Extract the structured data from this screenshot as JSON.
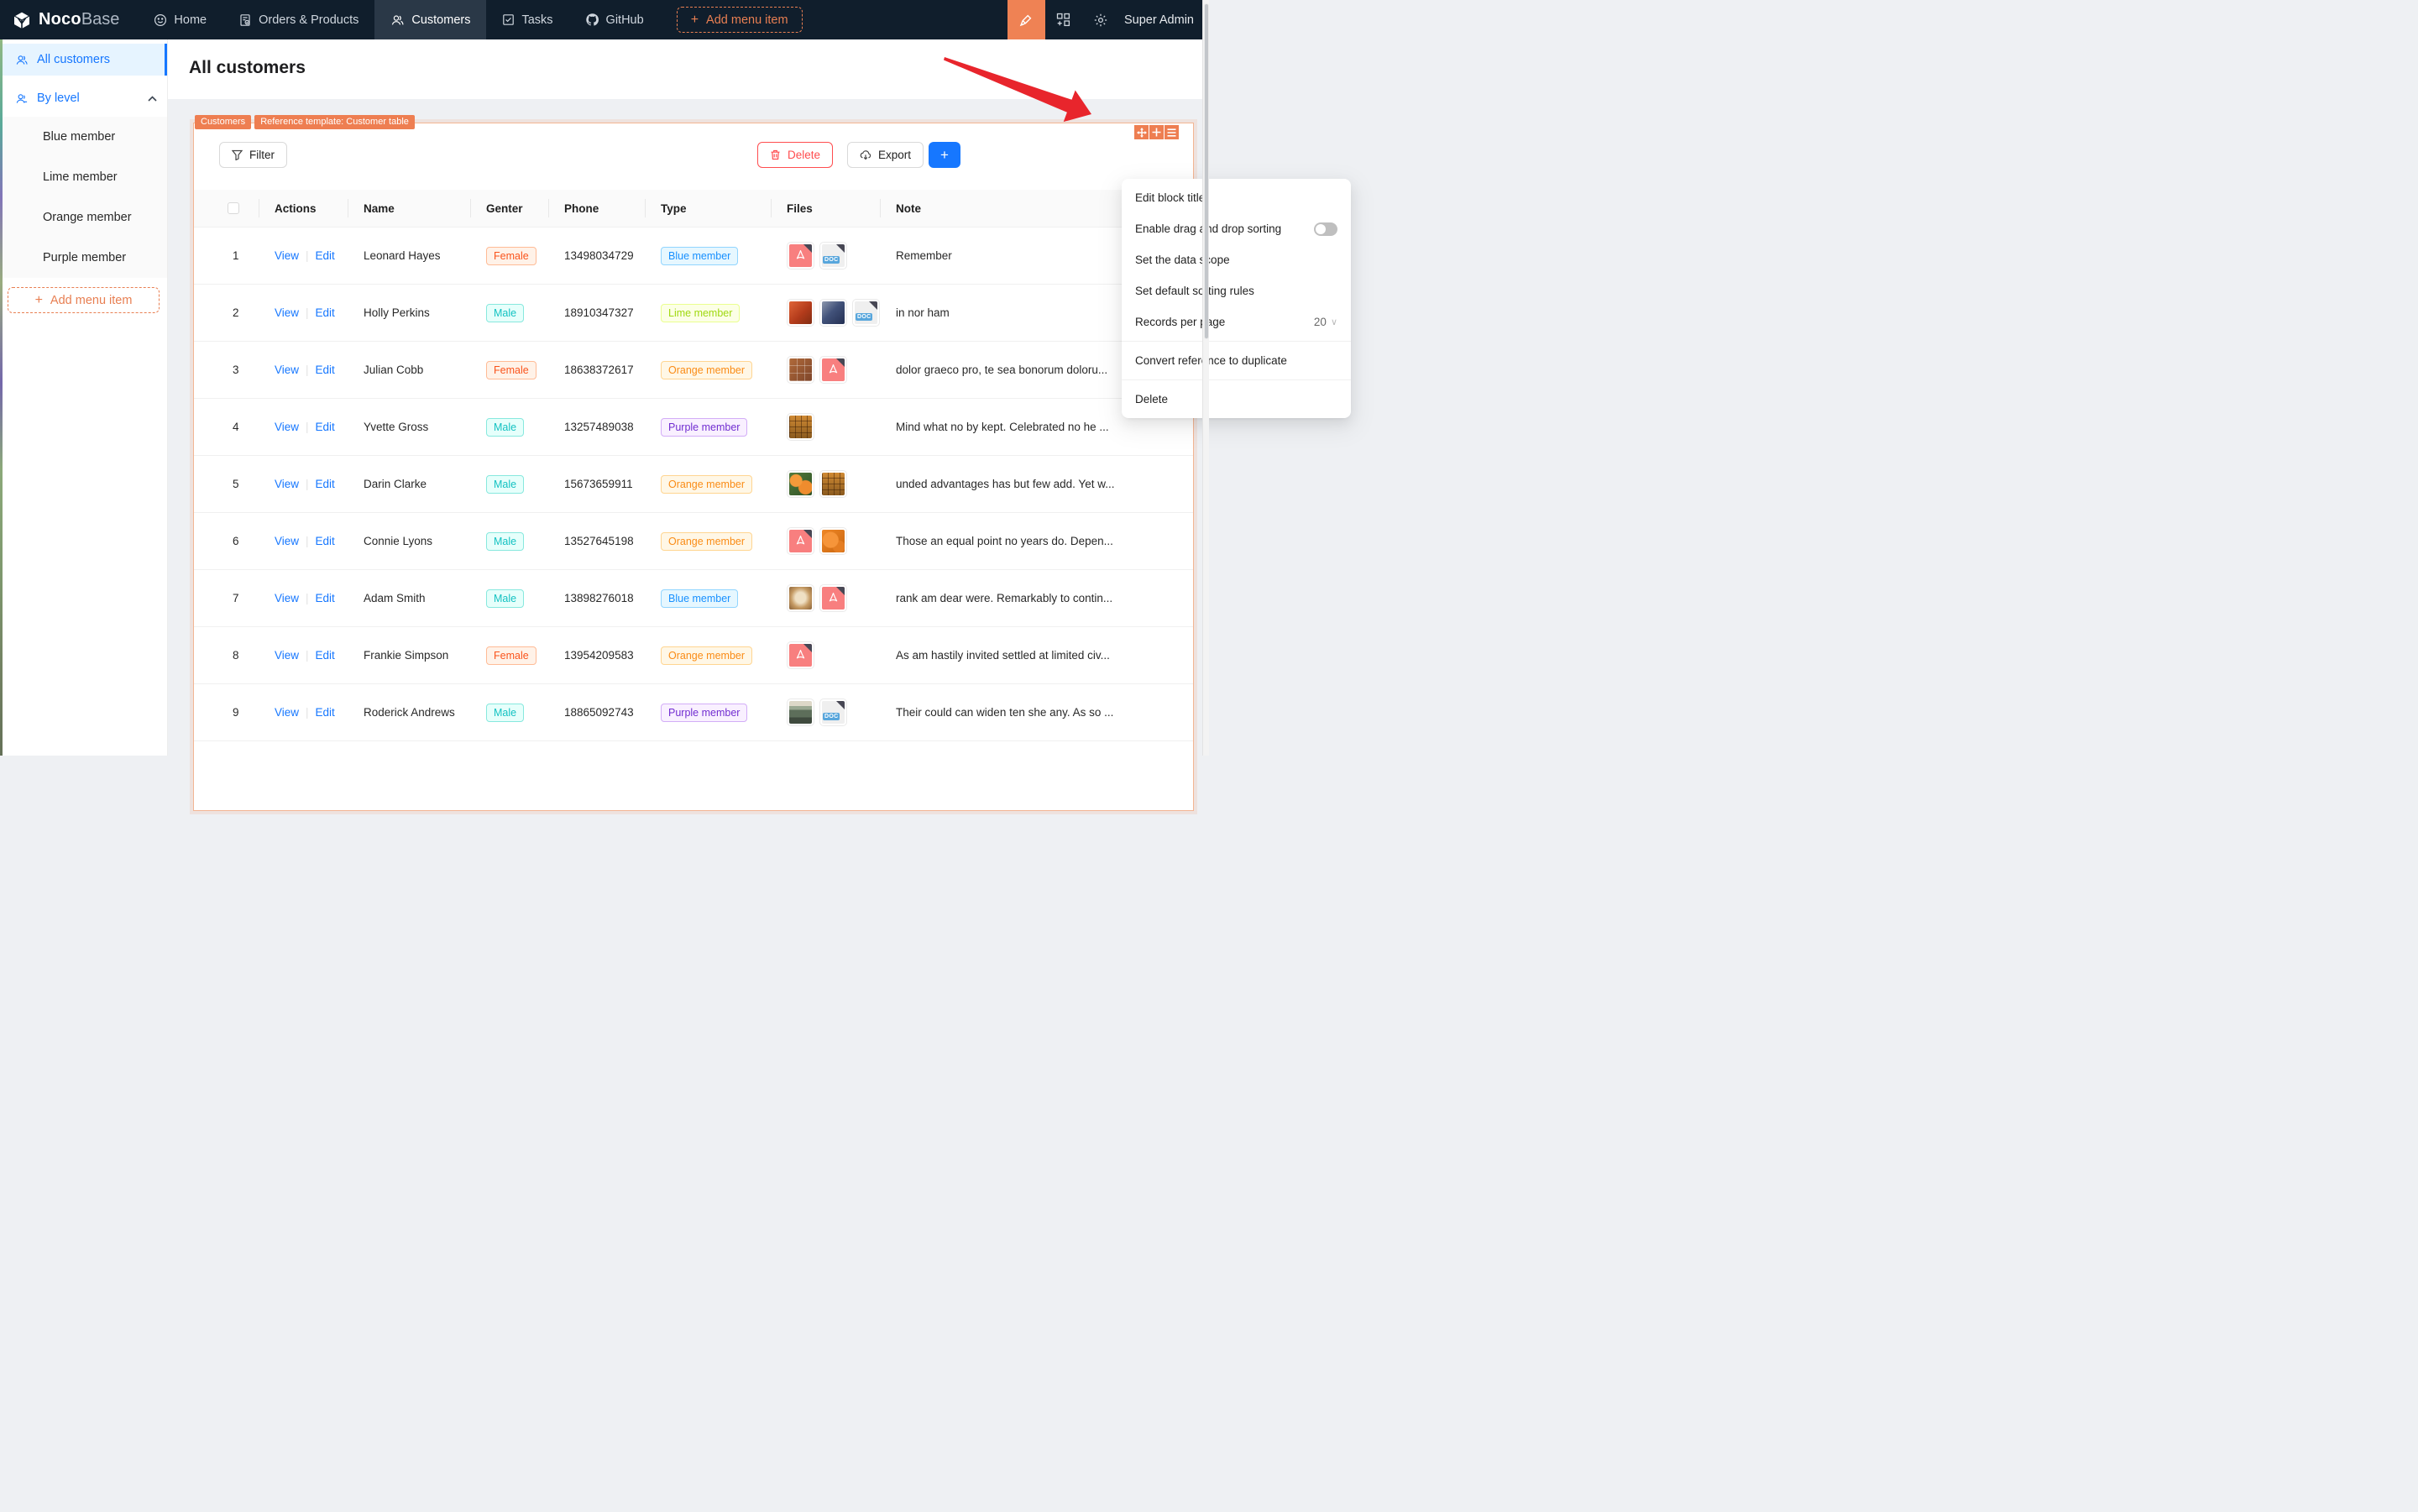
{
  "nav": {
    "logo": {
      "bold": "Noco",
      "light": "Base"
    },
    "items": [
      {
        "label": "Home",
        "icon": "smiley-icon",
        "active": false
      },
      {
        "label": "Orders & Products",
        "icon": "orders-icon",
        "active": false
      },
      {
        "label": "Customers",
        "icon": "customers-icon",
        "active": true
      },
      {
        "label": "Tasks",
        "icon": "tasks-icon",
        "active": false
      },
      {
        "label": "GitHub",
        "icon": "github-icon",
        "active": false
      }
    ],
    "add_menu_item_label": "Add menu item",
    "user": "Super Admin"
  },
  "sidebar": {
    "items": [
      {
        "label": "All customers",
        "active": true
      },
      {
        "label": "By level",
        "expanded": true
      }
    ],
    "sub_items": [
      "Blue member",
      "Lime member",
      "Orange member",
      "Purple member"
    ],
    "add_menu_item_label": "Add menu item"
  },
  "page": {
    "title": "All customers"
  },
  "block": {
    "tags": [
      "Customers",
      "Reference template: Customer table"
    ],
    "corner_icons": [
      "drag-icon",
      "plus-icon",
      "menu-icon"
    ],
    "toolbar": {
      "filter_label": "Filter",
      "delete_label": "Delete",
      "export_label": "Export",
      "add_label": "+"
    }
  },
  "settings_menu": {
    "items": [
      {
        "label": "Edit block title",
        "type": "plain"
      },
      {
        "label": "Enable drag and drop sorting",
        "type": "toggle",
        "toggle_state": "off"
      },
      {
        "label": "Set the data scope",
        "type": "plain"
      },
      {
        "label": "Set default sorting rules",
        "type": "plain"
      },
      {
        "label": "Records per page",
        "type": "select",
        "value": "20"
      },
      {
        "label": "Convert reference to duplicate",
        "type": "plain",
        "divider_before": true
      },
      {
        "label": "Delete",
        "type": "plain",
        "divider_before": true
      }
    ]
  },
  "table": {
    "headers": [
      "",
      "Actions",
      "Name",
      "Genter",
      "Phone",
      "Type",
      "Files",
      "Note"
    ],
    "action_labels": {
      "view": "View",
      "edit": "Edit"
    },
    "rows": [
      {
        "index": "1",
        "name": "Leonard Hayes",
        "gender": "Female",
        "phone": "13498034729",
        "type": "Blue member",
        "files": [
          "pdf",
          "doc"
        ],
        "note": "Remember"
      },
      {
        "index": "2",
        "name": "Holly Perkins",
        "gender": "Male",
        "phone": "18910347327",
        "type": "Lime member",
        "files": [
          "img-a",
          "img-b",
          "doc"
        ],
        "note": "in nor ham"
      },
      {
        "index": "3",
        "name": "Julian Cobb",
        "gender": "Female",
        "phone": "18638372617",
        "type": "Orange member",
        "files": [
          "img-c",
          "pdf"
        ],
        "note": "dolor graeco pro, te sea bonorum doloru..."
      },
      {
        "index": "4",
        "name": "Yvette Gross",
        "gender": "Male",
        "phone": "13257489038",
        "type": "Purple member",
        "files": [
          "img-d"
        ],
        "note": "Mind what no by kept. Celebrated no he ..."
      },
      {
        "index": "5",
        "name": "Darin Clarke",
        "gender": "Male",
        "phone": "15673659911",
        "type": "Orange member",
        "files": [
          "img-e",
          "img-d"
        ],
        "note": "unded advantages has but few add. Yet w..."
      },
      {
        "index": "6",
        "name": "Connie Lyons",
        "gender": "Male",
        "phone": "13527645198",
        "type": "Orange member",
        "files": [
          "pdf",
          "img-f"
        ],
        "note": "Those an equal point no years do. Depen..."
      },
      {
        "index": "7",
        "name": "Adam Smith",
        "gender": "Male",
        "phone": "13898276018",
        "type": "Blue member",
        "files": [
          "img-g",
          "pdf"
        ],
        "note": "rank am dear were. Remarkably to contin..."
      },
      {
        "index": "8",
        "name": "Frankie Simpson",
        "gender": "Female",
        "phone": "13954209583",
        "type": "Orange member",
        "files": [
          "pdf"
        ],
        "note": "As am hastily invited settled at limited civ..."
      },
      {
        "index": "9",
        "name": "Roderick Andrews",
        "gender": "Male",
        "phone": "18865092743",
        "type": "Purple member",
        "files": [
          "img-h",
          "doc"
        ],
        "note": "Their could can widen ten she any. As so ..."
      }
    ]
  },
  "colors": {
    "nav_bg": "#101e2c",
    "accent_orange": "#ee7e51",
    "primary_blue": "#1677ff",
    "danger_red": "#ff4d4f",
    "arrow_red": "#e8252c",
    "active_item_bg": "#e6f4ff"
  }
}
